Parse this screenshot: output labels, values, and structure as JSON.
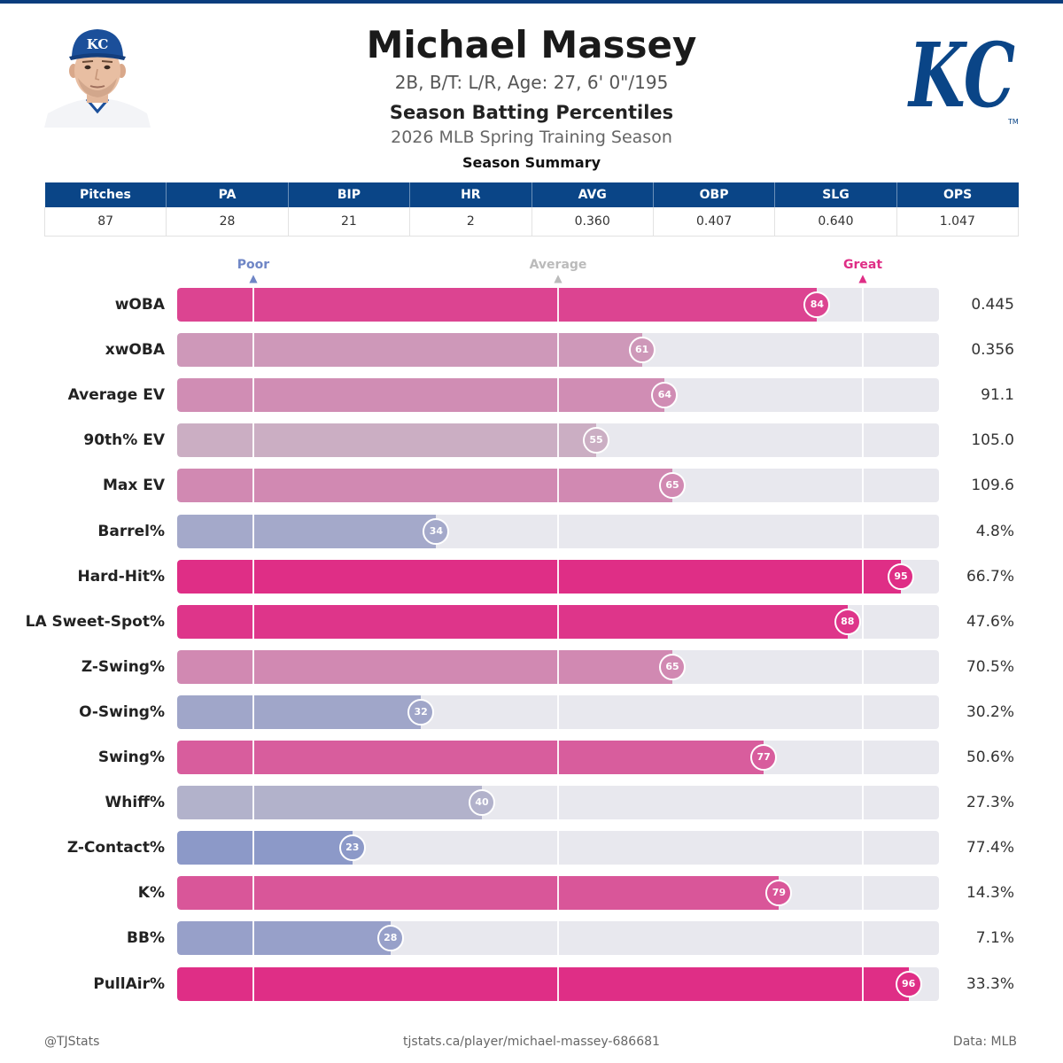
{
  "header": {
    "player_name": "Michael Massey",
    "bio": "2B, B/T: L/R, Age: 27, 6' 0\"/195",
    "subtitle": "Season Batting Percentiles",
    "season": "2026 MLB Spring Training Season",
    "team_logo_text": "KC",
    "team_logo_tm": "TM",
    "cap_logo_text": "KC"
  },
  "colors": {
    "brand_blue": "#0a4587",
    "poor": "#6f86c6",
    "average": "#bbbbbb",
    "great": "#df2e86"
  },
  "summary": {
    "title": "Season Summary",
    "columns": [
      "Pitches",
      "PA",
      "BIP",
      "HR",
      "AVG",
      "OBP",
      "SLG",
      "OPS"
    ],
    "values": [
      "87",
      "28",
      "21",
      "2",
      "0.360",
      "0.407",
      "0.640",
      "1.047"
    ]
  },
  "chart_data": {
    "type": "bar",
    "orientation": "horizontal",
    "xlim": [
      0,
      100
    ],
    "reference_lines": [
      {
        "label": "Poor",
        "value": 10
      },
      {
        "label": "Average",
        "value": 50
      },
      {
        "label": "Great",
        "value": 90
      }
    ],
    "categories": [
      "wOBA",
      "xwOBA",
      "Average EV",
      "90th% EV",
      "Max EV",
      "Barrel%",
      "Hard-Hit%",
      "LA Sweet-Spot%",
      "Z-Swing%",
      "O-Swing%",
      "Swing%",
      "Whiff%",
      "Z-Contact%",
      "K%",
      "BB%",
      "PullAir%"
    ],
    "percentiles": [
      84,
      61,
      64,
      55,
      65,
      34,
      95,
      88,
      65,
      32,
      77,
      40,
      23,
      79,
      28,
      96
    ],
    "stat_values": [
      "0.445",
      "0.356",
      "91.1",
      "105.0",
      "109.6",
      "4.8%",
      "66.7%",
      "47.6%",
      "70.5%",
      "30.2%",
      "50.6%",
      "27.3%",
      "77.4%",
      "14.3%",
      "7.1%",
      "33.3%"
    ]
  },
  "footer": {
    "left": "@TJStats",
    "center": "tjstats.ca/player/michael-massey-686681",
    "right": "Data: MLB"
  }
}
